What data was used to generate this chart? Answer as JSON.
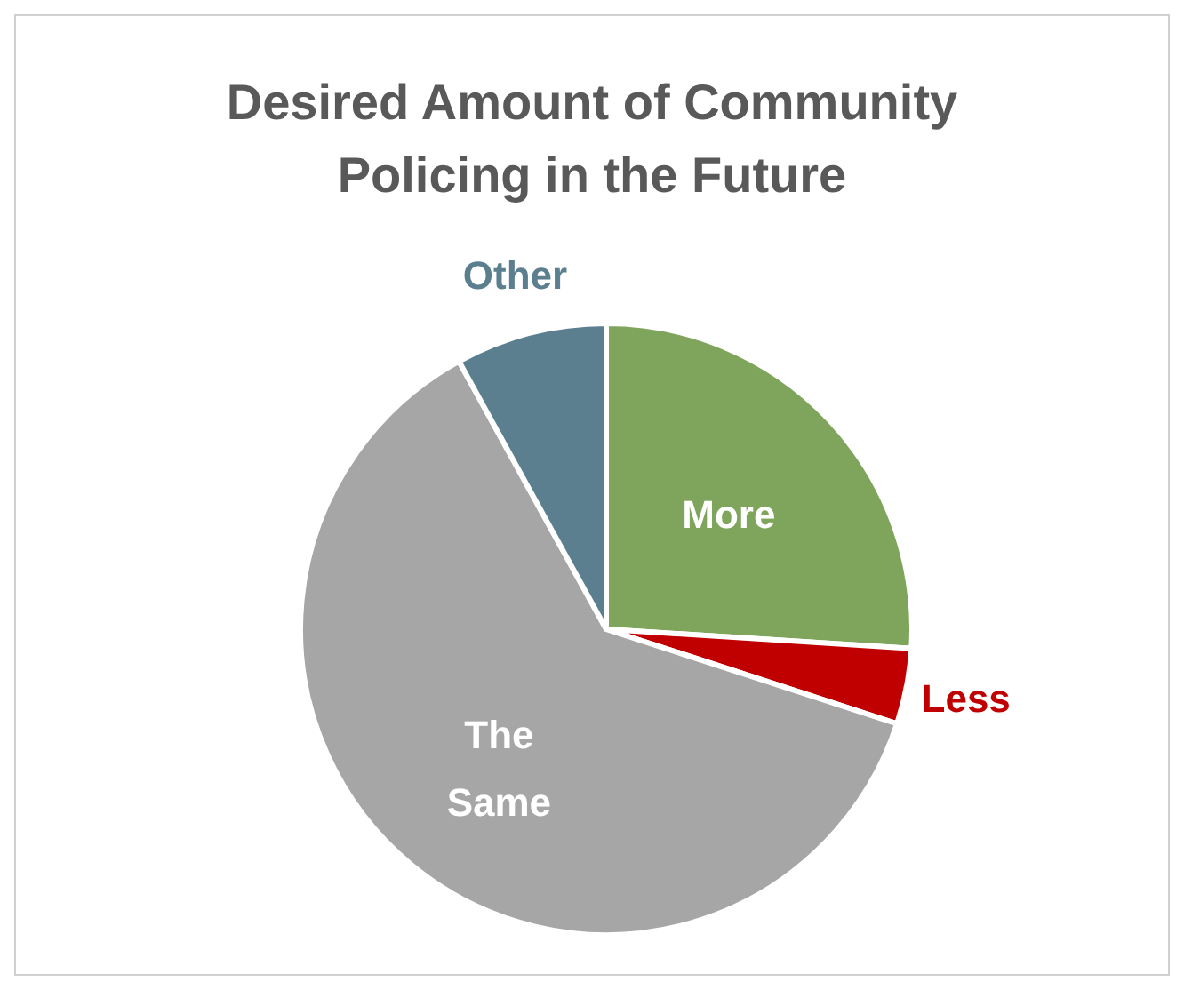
{
  "chart_data": {
    "type": "pie",
    "title": "Desired Amount of Community Policing in the Future",
    "categories": [
      "More",
      "Less",
      "The Same",
      "Other"
    ],
    "values": [
      26,
      4,
      62,
      8
    ],
    "colors": [
      "#7ea55b",
      "#c00000",
      "#a6a6a6",
      "#5b7f8f"
    ]
  }
}
